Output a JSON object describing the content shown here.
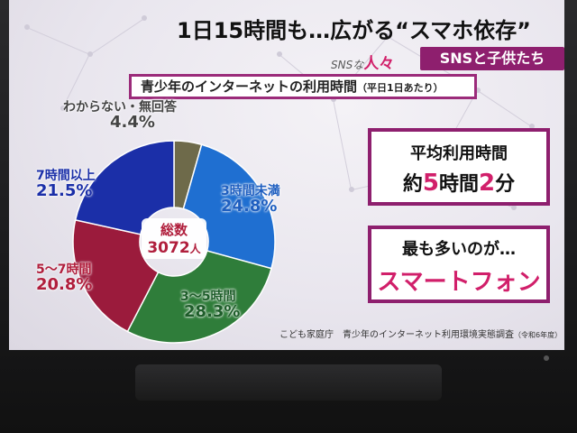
{
  "headline": "1日15時間も…広がる“スマホ依存”",
  "brand": {
    "prefix": "SNSな",
    "kana": "人々"
  },
  "series_tag": "SNSと子供たち",
  "subtitle": {
    "main": "青少年のインターネットの利用時間",
    "note": "（平日1日あたり）"
  },
  "center": {
    "label": "総数",
    "value": "3072",
    "unit": "人"
  },
  "chart_data": {
    "type": "pie",
    "style": "donut",
    "categories": [
      "わからない・無回答",
      "3時間未満",
      "3〜5時間",
      "5〜7時間",
      "7時間以上"
    ],
    "values": [
      4.4,
      24.8,
      28.3,
      20.8,
      21.5
    ],
    "labels": [
      "4.4%",
      "24.8%",
      "28.3%",
      "20.8%",
      "21.5%"
    ],
    "colors": [
      "#6e6a4a",
      "#1f6fd1",
      "#2f7d3a",
      "#9b1b3c",
      "#1b2fa8"
    ],
    "label_colors": [
      "#444444",
      "#1f5fc0",
      "#1e5d2a",
      "#b01e3c",
      "#1b2fa8"
    ]
  },
  "box_average": {
    "line1": "平均利用時間",
    "prefix": "約",
    "h": "5",
    "h_unit": "時間",
    "m": "2",
    "m_unit": "分"
  },
  "box_most": {
    "line1": "最も多いのが…",
    "line2": "スマートフォン"
  },
  "source": {
    "main": "こども家庭庁　青少年のインターネット利用環境実態調査",
    "note": "（令和6年度）"
  }
}
